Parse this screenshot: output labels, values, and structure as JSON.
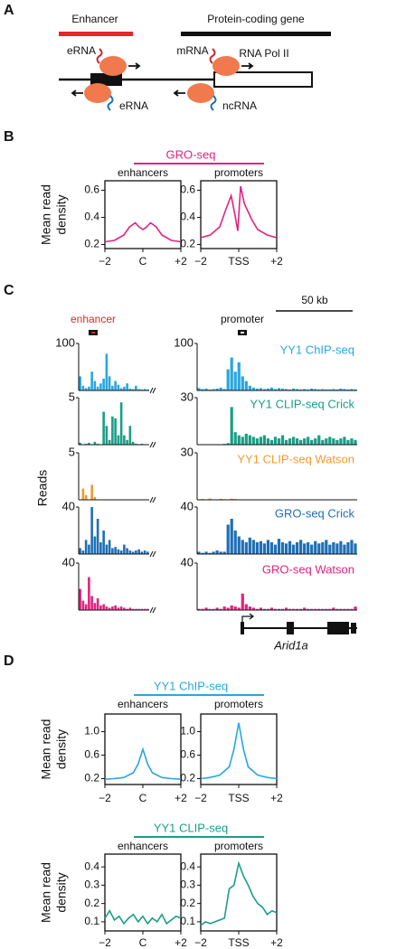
{
  "panel_labels": [
    "A",
    "B",
    "C",
    "D"
  ],
  "diagram": {
    "enhancer": "Enhancer",
    "gene": "Protein-coding gene",
    "labels": [
      "eRNA",
      "mRNA",
      "RNA Pol II",
      "eRNA",
      "ncRNA"
    ]
  },
  "chart_data": [
    {
      "type": "line",
      "title": "GRO-seq",
      "color": "#e0237f",
      "ylabel": [
        "Mean read",
        "density"
      ],
      "panels": [
        {
          "subtitle": "enhancers",
          "x": [
            -2,
            -1.5,
            -1,
            -0.7,
            -0.4,
            -0.2,
            0,
            0.2,
            0.4,
            0.7,
            1,
            1.5,
            2
          ],
          "values": [
            0.22,
            0.23,
            0.27,
            0.33,
            0.36,
            0.33,
            0.31,
            0.33,
            0.36,
            0.33,
            0.27,
            0.23,
            0.22
          ],
          "xlim": [
            -2,
            2
          ],
          "ylim": [
            0.17,
            0.67
          ],
          "yticks": [
            0.2,
            0.4,
            0.6
          ],
          "xticks": [
            {
              "value": -2,
              "label": "−2"
            },
            {
              "value": 0,
              "label": "C"
            },
            {
              "value": 2,
              "label": "+2"
            }
          ]
        },
        {
          "subtitle": "promoters",
          "x": [
            -2,
            -1.5,
            -1,
            -0.7,
            -0.4,
            -0.2,
            -0.05,
            0.1,
            0.3,
            0.7,
            1,
            1.5,
            2
          ],
          "values": [
            0.25,
            0.27,
            0.33,
            0.45,
            0.56,
            0.42,
            0.3,
            0.63,
            0.5,
            0.38,
            0.31,
            0.27,
            0.25
          ],
          "xlim": [
            -2,
            2
          ],
          "ylim": [
            0.17,
            0.67
          ],
          "yticks": [
            0.2,
            0.4,
            0.6
          ],
          "xticks": [
            {
              "value": -2,
              "label": "−2"
            },
            {
              "value": 0,
              "label": "TSS"
            },
            {
              "value": 2,
              "label": "+2"
            }
          ]
        }
      ]
    },
    {
      "type": "tracks",
      "ylabel": "Reads",
      "scale_label": "50 kb",
      "enhancer_label": "enhancer",
      "promoter_label": "promoter",
      "gene": "Arid1a",
      "tracks": [
        {
          "name": "YY1 ChIP-seq",
          "color": "#2aa6df",
          "left": {
            "ylim": [
              0,
              100
            ],
            "yticks": [
              100
            ],
            "values": [
              30,
              10,
              5,
              8,
              40,
              20,
              8,
              15,
              25,
              78,
              30,
              10,
              20,
              12,
              5,
              8,
              15,
              4,
              3,
              10,
              3,
              2,
              3,
              2
            ]
          },
          "right": {
            "ylim": [
              0,
              100
            ],
            "yticks": [
              100
            ],
            "values": [
              5,
              3,
              4,
              2,
              3,
              4,
              6,
              3,
              45,
              70,
              40,
              60,
              30,
              20,
              10,
              6,
              4,
              5,
              3,
              4,
              6,
              3,
              5,
              4,
              3,
              2,
              4,
              3,
              2,
              3,
              2,
              4,
              3,
              2,
              3,
              2,
              2,
              3,
              2,
              4,
              3,
              2,
              3,
              2
            ]
          }
        },
        {
          "name": "YY1 CLIP-seq Crick",
          "color": "#1a9f86",
          "left": {
            "ylim": [
              0,
              5
            ],
            "yticks": [
              5
            ],
            "values": [
              0.2,
              0,
              0.1,
              0.2,
              0,
              0.3,
              0.1,
              0,
              3.5,
              2,
              0.5,
              3,
              2.8,
              1,
              4.5,
              1,
              0.5,
              2,
              0.3,
              0.1,
              0,
              0.1,
              0,
              0
            ]
          },
          "right": {
            "ylim": [
              0,
              30
            ],
            "yticks": [
              30
            ],
            "values": [
              0,
              0,
              0,
              0,
              0,
              0,
              0,
              0.5,
              1,
              24,
              8,
              6,
              5,
              7,
              6,
              5,
              4,
              5,
              6,
              4,
              3,
              5,
              4,
              6,
              3,
              4,
              5,
              4,
              3,
              4,
              5,
              3,
              4,
              6,
              3,
              4,
              5,
              4,
              3,
              4,
              5,
              3,
              4,
              3
            ]
          }
        },
        {
          "name": "YY1 CLIP-seq Watson",
          "color": "#f29a2e",
          "left": {
            "ylim": [
              0,
              5
            ],
            "yticks": [
              5
            ],
            "values": [
              0,
              1.2,
              0.5,
              0,
              1.6,
              0.3,
              0,
              0,
              0,
              0,
              0,
              0,
              0,
              0,
              0,
              0,
              0,
              0,
              0,
              0,
              0,
              0,
              0,
              0
            ]
          },
          "right": {
            "ylim": [
              0,
              30
            ],
            "yticks": [
              30
            ],
            "values": [
              0,
              0.5,
              0.3,
              0.8,
              0.2,
              0,
              0.6,
              0.4,
              0.3,
              0.7,
              0.5,
              0.3,
              0,
              0,
              0,
              0,
              0,
              0,
              0,
              0,
              0,
              0,
              0,
              0,
              0,
              0,
              0,
              0,
              0,
              0,
              0,
              0,
              0,
              0,
              0,
              0,
              0,
              0,
              0,
              0,
              0,
              0,
              0,
              0
            ]
          }
        },
        {
          "name": "GRO-seq Crick",
          "color": "#1f6fb5",
          "left": {
            "ylim": [
              0,
              40
            ],
            "yticks": [
              40
            ],
            "values": [
              5,
              3,
              12,
              8,
              40,
              15,
              30,
              10,
              20,
              8,
              12,
              5,
              6,
              4,
              3,
              8,
              5,
              3,
              2,
              3,
              4,
              2,
              3,
              2
            ]
          },
          "right": {
            "ylim": [
              0,
              40
            ],
            "yticks": [
              40
            ],
            "values": [
              2,
              1,
              2,
              1,
              2,
              3,
              2,
              2,
              25,
              30,
              20,
              15,
              12,
              10,
              14,
              12,
              10,
              11,
              9,
              12,
              10,
              8,
              13,
              10,
              9,
              11,
              8,
              10,
              12,
              9,
              10,
              8,
              11,
              9,
              10,
              12,
              8,
              10,
              9,
              11,
              8,
              10,
              12,
              9
            ]
          }
        },
        {
          "name": "GRO-seq Watson",
          "color": "#e0237f",
          "left": {
            "ylim": [
              0,
              40
            ],
            "yticks": [
              40
            ],
            "values": [
              18,
              8,
              5,
              28,
              12,
              6,
              10,
              4,
              5,
              3,
              2,
              3,
              4,
              2,
              3,
              2,
              1,
              2,
              1,
              1,
              1,
              1,
              1,
              1
            ]
          },
          "right": {
            "ylim": [
              0,
              40
            ],
            "yticks": [
              40
            ],
            "values": [
              1,
              1,
              2,
              1,
              1,
              2,
              1,
              3,
              2,
              4,
              3,
              2,
              14,
              5,
              3,
              2,
              1,
              2,
              1,
              1,
              2,
              1,
              1,
              1,
              2,
              1,
              1,
              1,
              1,
              2,
              1,
              1,
              1,
              1,
              1,
              1,
              1,
              2,
              1,
              1,
              1,
              1,
              1,
              3
            ]
          }
        }
      ]
    },
    {
      "type": "line",
      "title": "YY1 ChIP-seq",
      "color": "#2aa6df",
      "ylabel": [
        "Mean read",
        "density"
      ],
      "panels": [
        {
          "subtitle": "enhancers",
          "x": [
            -2,
            -1.5,
            -1,
            -0.5,
            -0.25,
            0,
            0.25,
            0.5,
            1,
            1.5,
            2
          ],
          "values": [
            0.19,
            0.2,
            0.22,
            0.3,
            0.45,
            0.7,
            0.45,
            0.3,
            0.22,
            0.2,
            0.19
          ],
          "xlim": [
            -2,
            2
          ],
          "ylim": [
            0.1,
            1.3
          ],
          "yticks": [
            0.2,
            0.6,
            {
              "value": 1,
              "label": "1.0"
            }
          ],
          "xticks": [
            {
              "value": -2,
              "label": "−2"
            },
            {
              "value": 0,
              "label": "C"
            },
            {
              "value": 2,
              "label": "+2"
            }
          ]
        },
        {
          "subtitle": "promoters",
          "x": [
            -2,
            -1.5,
            -1,
            -0.5,
            -0.25,
            0,
            0.25,
            0.5,
            1,
            1.5,
            2
          ],
          "values": [
            0.2,
            0.22,
            0.26,
            0.4,
            0.7,
            1.15,
            0.7,
            0.4,
            0.26,
            0.22,
            0.2
          ],
          "xlim": [
            -2,
            2
          ],
          "ylim": [
            0.1,
            1.3
          ],
          "yticks": [
            0.2,
            0.6,
            {
              "value": 1,
              "label": "1.0"
            }
          ],
          "xticks": [
            {
              "value": -2,
              "label": "−2"
            },
            {
              "value": 0,
              "label": "TSS"
            },
            {
              "value": 2,
              "label": "+2"
            }
          ]
        }
      ]
    },
    {
      "type": "line",
      "title": "YY1 CLIP-seq",
      "color": "#1a9f86",
      "ylabel": [
        "Mean read",
        "density"
      ],
      "panels": [
        {
          "subtitle": "enhancers",
          "x": [
            -2,
            -1.75,
            -1.5,
            -1.25,
            -1,
            -0.75,
            -0.5,
            -0.25,
            0,
            0.25,
            0.5,
            0.75,
            1,
            1.25,
            1.5,
            1.75,
            2
          ],
          "values": [
            0.12,
            0.16,
            0.11,
            0.13,
            0.09,
            0.12,
            0.14,
            0.1,
            0.13,
            0.09,
            0.12,
            0.1,
            0.14,
            0.09,
            0.11,
            0.13,
            0.12
          ],
          "xlim": [
            -2,
            2
          ],
          "ylim": [
            0.05,
            0.47
          ],
          "yticks": [
            0.1,
            0.2,
            0.3,
            0.4
          ],
          "xticks": [
            {
              "value": -2,
              "label": "−2"
            },
            {
              "value": 0,
              "label": "C"
            },
            {
              "value": 2,
              "label": "+2"
            }
          ]
        },
        {
          "subtitle": "promoters",
          "x": [
            -2,
            -1.75,
            -1.5,
            -1.25,
            -1,
            -0.75,
            -0.5,
            -0.25,
            0,
            0.25,
            0.5,
            0.75,
            1,
            1.25,
            1.5,
            1.75,
            2
          ],
          "values": [
            0.08,
            0.1,
            0.09,
            0.1,
            0.11,
            0.12,
            0.28,
            0.3,
            0.42,
            0.35,
            0.3,
            0.24,
            0.2,
            0.18,
            0.14,
            0.16,
            0.15
          ],
          "xlim": [
            -2,
            2
          ],
          "ylim": [
            0.05,
            0.47
          ],
          "yticks": [
            0.1,
            0.2,
            0.3,
            0.4
          ],
          "xticks": [
            {
              "value": -2,
              "label": "−2"
            },
            {
              "value": 0,
              "label": "TSS"
            },
            {
              "value": 2,
              "label": "+2"
            }
          ]
        }
      ]
    }
  ]
}
